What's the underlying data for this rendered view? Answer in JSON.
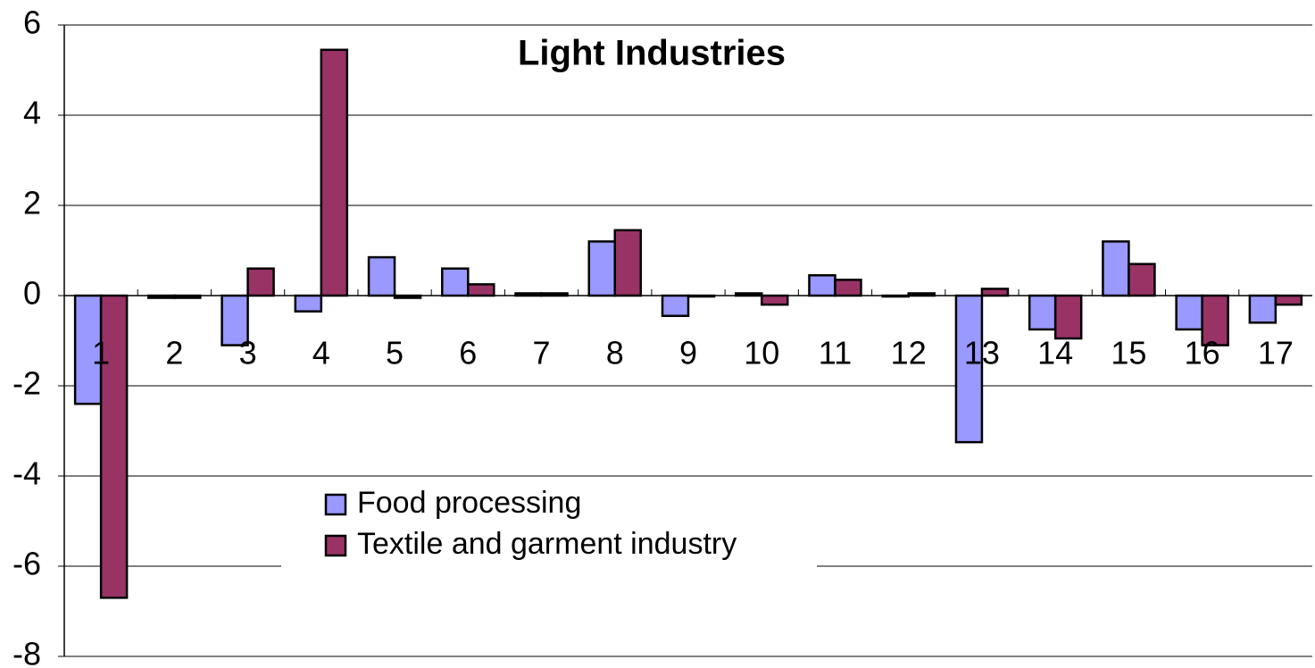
{
  "chart_data": {
    "type": "bar",
    "title": "Light Industries",
    "categories": [
      "1",
      "2",
      "3",
      "4",
      "5",
      "6",
      "7",
      "8",
      "9",
      "10",
      "11",
      "12",
      "13",
      "14",
      "15",
      "16",
      "17"
    ],
    "series": [
      {
        "name": "Food processing",
        "color": "#9999ff",
        "values": [
          -2.4,
          -0.05,
          -1.1,
          -0.35,
          0.85,
          0.6,
          0.05,
          1.2,
          -0.45,
          0.05,
          0.45,
          0,
          -3.25,
          -0.75,
          1.2,
          -0.75,
          -0.6
        ]
      },
      {
        "name": "Textile and garment industry",
        "color": "#993366",
        "values": [
          -6.7,
          -0.05,
          0.6,
          5.45,
          -0.05,
          0.25,
          0.05,
          1.45,
          0,
          -0.2,
          0.35,
          0.05,
          0.15,
          -0.95,
          0.7,
          -1.1,
          -0.2
        ]
      }
    ],
    "ylim": [
      -8,
      6
    ],
    "yticks": [
      -8,
      -6,
      -4,
      -2,
      0,
      2,
      4,
      6
    ],
    "grid": true
  }
}
